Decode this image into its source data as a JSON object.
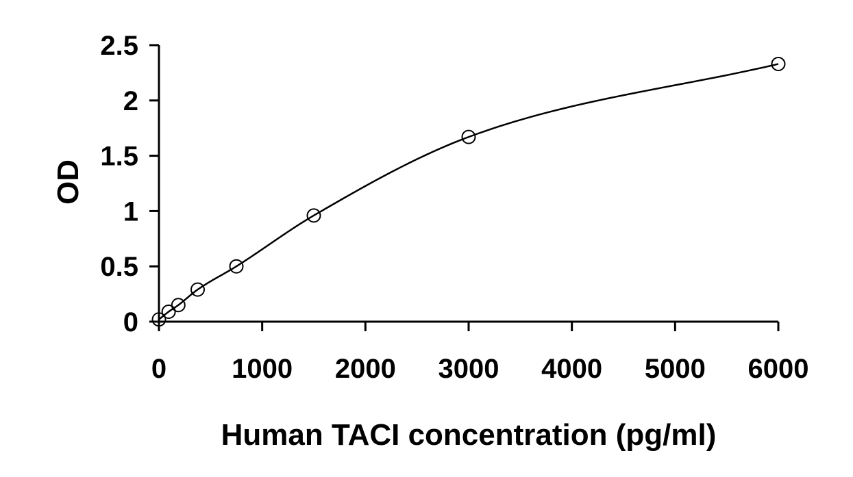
{
  "chart_data": {
    "type": "scatter",
    "title": "",
    "xlabel": "Human TACI concentration (pg/ml)",
    "ylabel": "OD",
    "xlim": [
      0,
      6000
    ],
    "ylim": [
      0,
      2.5
    ],
    "xticks": [
      0,
      1000,
      2000,
      3000,
      4000,
      5000,
      6000
    ],
    "yticks": [
      0,
      0.5,
      1,
      1.5,
      2,
      2.5
    ],
    "xtick_labels": [
      "0",
      "1000",
      "2000",
      "3000",
      "4000",
      "5000",
      "6000"
    ],
    "ytick_labels": [
      "0",
      "0.5",
      "1",
      "1.5",
      "2",
      "2.5"
    ],
    "grid": false,
    "legend": "none",
    "marker": "open-circle",
    "fit": "smooth curve through points",
    "series": [
      {
        "x": [
          0,
          94,
          188,
          375,
          750,
          1500,
          3000,
          6000
        ],
        "y": [
          0.02,
          0.09,
          0.15,
          0.29,
          0.5,
          0.96,
          1.67,
          2.33
        ]
      }
    ]
  }
}
